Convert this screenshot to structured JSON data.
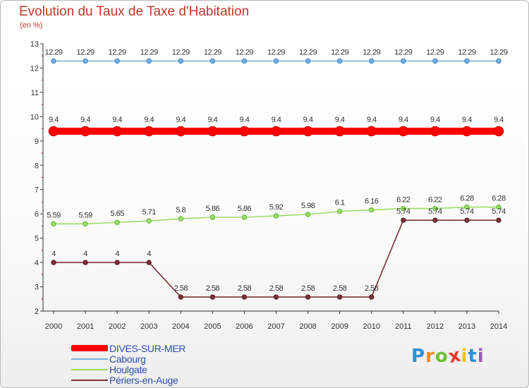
{
  "title": "Evolution du Taux de Taxe d'Habitation",
  "unit_label": "(en %)",
  "chart_data": {
    "type": "line",
    "title": "Evolution du Taux de Taxe d'Habitation",
    "ylabel": "(en %)",
    "xlabel": "",
    "ylim": [
      2,
      13
    ],
    "yticks": [
      2,
      3,
      4,
      5,
      6,
      7,
      8,
      9,
      10,
      11,
      12,
      13
    ],
    "grid": false,
    "legend_position": "bottom-left",
    "x": [
      "2000",
      "2001",
      "2002",
      "2003",
      "2004",
      "2005",
      "2006",
      "2007",
      "2008",
      "2009",
      "2010",
      "2011",
      "2012",
      "2013",
      "2014"
    ],
    "series": [
      {
        "name": "DIVES-SUR-MER",
        "color": "#ff0000",
        "values": [
          9.4,
          9.4,
          9.4,
          9.4,
          9.4,
          9.4,
          9.4,
          9.4,
          9.4,
          9.4,
          9.4,
          9.4,
          9.4,
          9.4,
          9.4
        ],
        "labels": [
          "9.4",
          "9.4",
          "9.4",
          "9.4",
          "9.4",
          "9.4",
          "9.4",
          "9.4",
          "9.4",
          "9.4",
          "9.4",
          "9.4",
          "9.4",
          "9.4",
          "9.4"
        ]
      },
      {
        "name": "Cabourg",
        "color": "#7aafde",
        "values": [
          12.29,
          12.29,
          12.29,
          12.29,
          12.29,
          12.29,
          12.29,
          12.29,
          12.29,
          12.29,
          12.29,
          12.29,
          12.29,
          12.29,
          12.29
        ],
        "labels": [
          "12.29",
          "12.29",
          "12.29",
          "12.29",
          "12.29",
          "12.29",
          "12.29",
          "12.29",
          "12.29",
          "12.29",
          "12.29",
          "12.29",
          "12.29",
          "12.29",
          "12.29"
        ]
      },
      {
        "name": "Houlgate",
        "color": "#99dd66",
        "values": [
          5.59,
          5.59,
          5.65,
          5.71,
          5.8,
          5.86,
          5.86,
          5.92,
          5.98,
          6.1,
          6.16,
          6.22,
          6.22,
          6.28,
          6.28
        ],
        "labels": [
          "5.59",
          "5.59",
          "5.65",
          "5.71",
          "5.8",
          "5.86",
          "5.86",
          "5.92",
          "5.98",
          "6.1",
          "6.16",
          "6.22",
          "6.22",
          "6.28",
          "6.28"
        ]
      },
      {
        "name": "Périers-en-Auge",
        "color": "#7a3035",
        "values": [
          4,
          4,
          4,
          4,
          2.58,
          2.58,
          2.58,
          2.58,
          2.58,
          2.58,
          2.58,
          5.74,
          5.74,
          5.74,
          5.74
        ],
        "labels": [
          "4",
          "4",
          "4",
          "4",
          "2.58",
          "2.58",
          "2.58",
          "2.58",
          "2.58",
          "2.58",
          "2.58",
          "5.74",
          "5.74",
          "5.74",
          "5.74"
        ]
      }
    ]
  },
  "logo": {
    "letters": [
      "P",
      "r",
      "o",
      "x",
      "i",
      "t",
      "i"
    ],
    "colors": [
      "#2f8fd0",
      "#f08c1e",
      "#6cbf3a",
      "#e23b2e",
      "#f2c200",
      "#2f8fd0",
      "#9b59b6"
    ]
  }
}
